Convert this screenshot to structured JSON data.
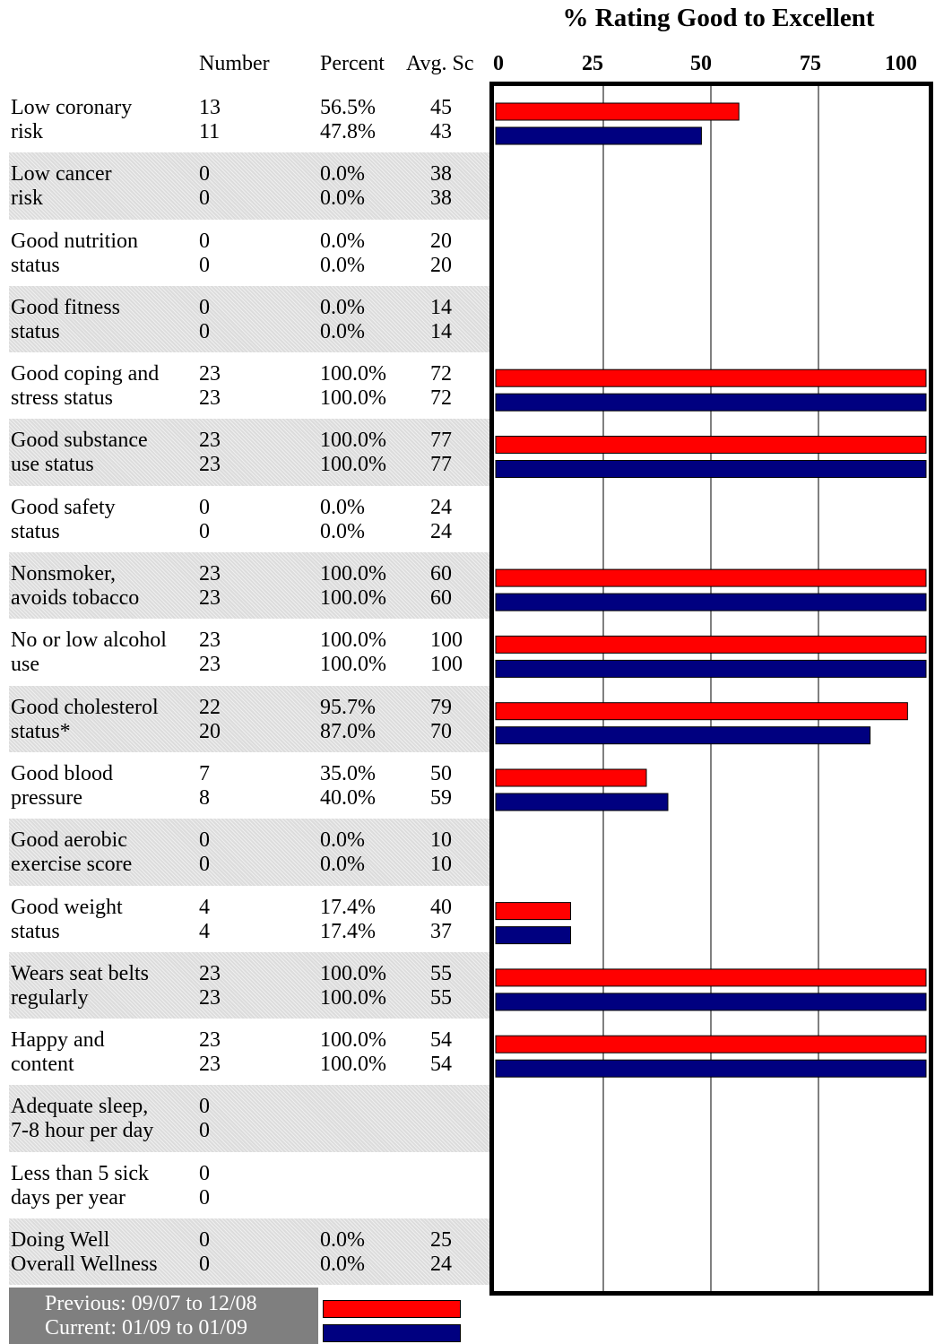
{
  "chart_data": {
    "type": "bar",
    "orientation": "horizontal",
    "title": "% Rating Good to Excellent",
    "columns": {
      "number": "Number",
      "percent": "Percent",
      "avg": "Avg. Sc"
    },
    "xticks": [
      "0",
      "25",
      "50",
      "75",
      "100"
    ],
    "xlim": [
      0,
      100
    ],
    "grid": true,
    "colors": {
      "previous": "#ff0000",
      "current": "#000080"
    },
    "categories": [
      {
        "label1": "Low coronary",
        "label2": "risk",
        "prev": {
          "number": "13",
          "percent": "56.5%",
          "avg": "45"
        },
        "curr": {
          "number": "11",
          "percent": "47.8%",
          "avg": "43"
        }
      },
      {
        "label1": "Low cancer",
        "label2": "risk",
        "prev": {
          "number": "0",
          "percent": "0.0%",
          "avg": "38"
        },
        "curr": {
          "number": "0",
          "percent": "0.0%",
          "avg": "38"
        }
      },
      {
        "label1": "Good nutrition",
        "label2": "status",
        "prev": {
          "number": "0",
          "percent": "0.0%",
          "avg": "20"
        },
        "curr": {
          "number": "0",
          "percent": "0.0%",
          "avg": "20"
        }
      },
      {
        "label1": "Good fitness",
        "label2": "status",
        "prev": {
          "number": "0",
          "percent": "0.0%",
          "avg": "14"
        },
        "curr": {
          "number": "0",
          "percent": "0.0%",
          "avg": "14"
        }
      },
      {
        "label1": "Good coping and",
        "label2": "stress status",
        "prev": {
          "number": "23",
          "percent": "100.0%",
          "avg": "72"
        },
        "curr": {
          "number": "23",
          "percent": "100.0%",
          "avg": "72"
        }
      },
      {
        "label1": "Good substance",
        "label2": "use status",
        "prev": {
          "number": "23",
          "percent": "100.0%",
          "avg": "77"
        },
        "curr": {
          "number": "23",
          "percent": "100.0%",
          "avg": "77"
        }
      },
      {
        "label1": "Good safety",
        "label2": "status",
        "prev": {
          "number": "0",
          "percent": "0.0%",
          "avg": "24"
        },
        "curr": {
          "number": "0",
          "percent": "0.0%",
          "avg": "24"
        }
      },
      {
        "label1": "Nonsmoker,",
        "label2": "avoids tobacco",
        "prev": {
          "number": "23",
          "percent": "100.0%",
          "avg": "60"
        },
        "curr": {
          "number": "23",
          "percent": "100.0%",
          "avg": "60"
        }
      },
      {
        "label1": "No or low alcohol",
        "label2": "use",
        "prev": {
          "number": "23",
          "percent": "100.0%",
          "avg": "100"
        },
        "curr": {
          "number": "23",
          "percent": "100.0%",
          "avg": "100"
        }
      },
      {
        "label1": "Good cholesterol",
        "label2": "status*",
        "prev": {
          "number": "22",
          "percent": "95.7%",
          "avg": "79"
        },
        "curr": {
          "number": "20",
          "percent": "87.0%",
          "avg": "70"
        }
      },
      {
        "label1": "Good blood",
        "label2": "pressure",
        "prev": {
          "number": "7",
          "percent": "35.0%",
          "avg": "50"
        },
        "curr": {
          "number": "8",
          "percent": "40.0%",
          "avg": "59"
        }
      },
      {
        "label1": "Good aerobic",
        "label2": "exercise score",
        "prev": {
          "number": "0",
          "percent": "0.0%",
          "avg": "10"
        },
        "curr": {
          "number": "0",
          "percent": "0.0%",
          "avg": "10"
        }
      },
      {
        "label1": "Good weight",
        "label2": "status",
        "prev": {
          "number": "4",
          "percent": "17.4%",
          "avg": "40"
        },
        "curr": {
          "number": "4",
          "percent": "17.4%",
          "avg": "37"
        }
      },
      {
        "label1": "Wears seat belts",
        "label2": "regularly",
        "prev": {
          "number": "23",
          "percent": "100.0%",
          "avg": "55"
        },
        "curr": {
          "number": "23",
          "percent": "100.0%",
          "avg": "55"
        }
      },
      {
        "label1": "Happy and",
        "label2": "content",
        "prev": {
          "number": "23",
          "percent": "100.0%",
          "avg": "54"
        },
        "curr": {
          "number": "23",
          "percent": "100.0%",
          "avg": "54"
        }
      },
      {
        "label1": "Adequate sleep,",
        "label2": "7-8 hour per day",
        "prev": {
          "number": "0",
          "percent": "",
          "avg": ""
        },
        "curr": {
          "number": "0",
          "percent": "",
          "avg": ""
        }
      },
      {
        "label1": "Less than 5 sick",
        "label2": "days per year",
        "prev": {
          "number": "0",
          "percent": "",
          "avg": ""
        },
        "curr": {
          "number": "0",
          "percent": "",
          "avg": ""
        }
      },
      {
        "label1": "Doing Well",
        "label2": "Overall Wellness",
        "prev": {
          "number": "0",
          "percent": "0.0%",
          "avg": "25"
        },
        "curr": {
          "number": "0",
          "percent": "0.0%",
          "avg": "24"
        }
      }
    ],
    "series": [
      {
        "name": "Previous: 09/07 to 12/08",
        "values": [
          56.5,
          0,
          0,
          0,
          100,
          100,
          0,
          100,
          100,
          95.7,
          35.0,
          0,
          17.4,
          100,
          100,
          0,
          0,
          0
        ]
      },
      {
        "name": "Current: 01/09 to 01/09",
        "values": [
          47.8,
          0,
          0,
          0,
          100,
          100,
          0,
          100,
          100,
          87.0,
          40.0,
          0,
          17.4,
          100,
          100,
          0,
          0,
          0
        ]
      }
    ]
  }
}
